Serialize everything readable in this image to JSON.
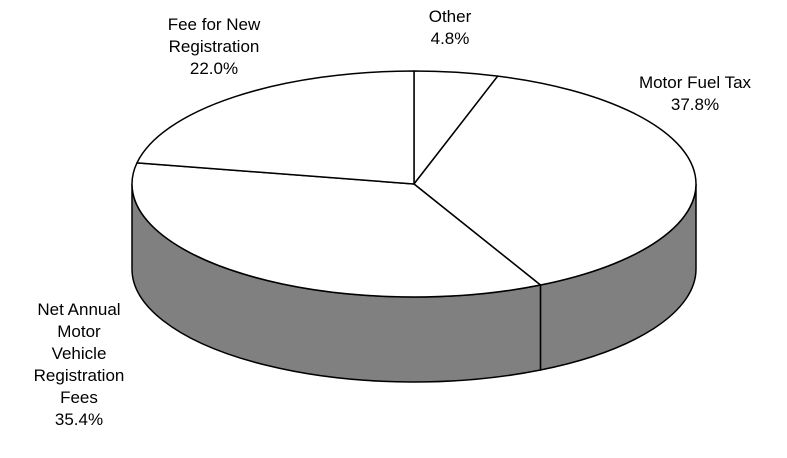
{
  "chart_data": {
    "type": "pie",
    "style": "3d-exploded-none",
    "title": "",
    "start_angle_deg": 0,
    "direction": "clockwise",
    "slices": [
      {
        "label": "Other",
        "value": 4.8,
        "display": "4.8%"
      },
      {
        "label": "Motor Fuel Tax",
        "value": 37.8,
        "display": "37.8%"
      },
      {
        "label": "Net Annual Motor Vehicle Registration Fees",
        "value": 35.4,
        "display": "35.4%"
      },
      {
        "label": "Fee for New Registration",
        "value": 22.0,
        "display": "22.0%"
      }
    ],
    "colors": {
      "top": "#ffffff",
      "side": "#808080",
      "stroke": "#000000"
    }
  },
  "labels": {
    "other": {
      "name": "Other",
      "pct": "4.8%"
    },
    "fuel": {
      "name": "Motor Fuel Tax",
      "pct": "37.8%"
    },
    "net": {
      "name": "Net Annual\nMotor\nVehicle\nRegistration\nFees",
      "pct": "35.4%"
    },
    "new": {
      "name": "Fee for New\nRegistration",
      "pct": "22.0%"
    }
  }
}
